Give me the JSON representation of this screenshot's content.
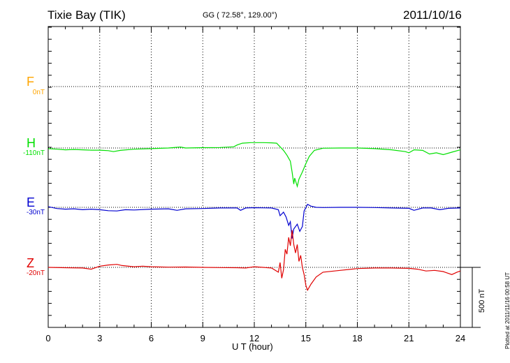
{
  "header": {
    "station": "Tixie Bay (TIK)",
    "coords": "GG ( 72.58°, 129.00°)",
    "date": "2011/10/16"
  },
  "side_note": "Plotted at 2011/11/16 00:58 UT",
  "chart_data": {
    "type": "line",
    "xlabel": "U T (hour)",
    "xlim": [
      0,
      24
    ],
    "xticks": [
      0,
      3,
      6,
      9,
      12,
      15,
      18,
      21,
      24
    ],
    "grid": true,
    "scale_bar": {
      "label": "500 nT",
      "value_nT": 500
    },
    "components": [
      {
        "name": "F",
        "baseline_label": "0nT",
        "color": "#FFA500",
        "points": []
      },
      {
        "name": "H",
        "baseline_label": "-110nT",
        "color": "#00E000",
        "points": [
          [
            0,
            -5
          ],
          [
            0.5,
            -10
          ],
          [
            1,
            -15
          ],
          [
            1.5,
            -12
          ],
          [
            2,
            -15
          ],
          [
            2.5,
            -18
          ],
          [
            3,
            -18
          ],
          [
            3.5,
            -22
          ],
          [
            3.8,
            -30
          ],
          [
            4.2,
            -20
          ],
          [
            5,
            -10
          ],
          [
            6,
            -5
          ],
          [
            7,
            0
          ],
          [
            7.7,
            8
          ],
          [
            8,
            0
          ],
          [
            9,
            3
          ],
          [
            10,
            4
          ],
          [
            10.8,
            10
          ],
          [
            11,
            25
          ],
          [
            11.3,
            40
          ],
          [
            11.8,
            45
          ],
          [
            12.5,
            45
          ],
          [
            13,
            43
          ],
          [
            13.3,
            40
          ],
          [
            13.5,
            10
          ],
          [
            13.7,
            -20
          ],
          [
            13.9,
            -60
          ],
          [
            14.1,
            -110
          ],
          [
            14.2,
            -200
          ],
          [
            14.3,
            -300
          ],
          [
            14.35,
            -250
          ],
          [
            14.5,
            -320
          ],
          [
            14.6,
            -260
          ],
          [
            14.8,
            -200
          ],
          [
            15,
            -130
          ],
          [
            15.2,
            -70
          ],
          [
            15.5,
            -20
          ],
          [
            16,
            -2
          ],
          [
            17,
            0
          ],
          [
            18,
            0
          ],
          [
            19,
            -5
          ],
          [
            20,
            -15
          ],
          [
            20.8,
            -30
          ],
          [
            21,
            -40
          ],
          [
            21.3,
            -15
          ],
          [
            21.8,
            -20
          ],
          [
            22.2,
            -50
          ],
          [
            22.6,
            -40
          ],
          [
            23,
            -55
          ],
          [
            23.5,
            -35
          ],
          [
            24,
            -15
          ]
        ]
      },
      {
        "name": "E",
        "baseline_label": "-30nT",
        "color": "#0000D0",
        "points": [
          [
            0,
            5
          ],
          [
            0.5,
            -10
          ],
          [
            1,
            -15
          ],
          [
            1.5,
            -12
          ],
          [
            2,
            -20
          ],
          [
            2.5,
            -15
          ],
          [
            3,
            -20
          ],
          [
            3.5,
            -28
          ],
          [
            4,
            -30
          ],
          [
            4.5,
            -20
          ],
          [
            5,
            -22
          ],
          [
            6,
            -15
          ],
          [
            7,
            -12
          ],
          [
            7.5,
            -25
          ],
          [
            8,
            -12
          ],
          [
            9,
            -10
          ],
          [
            10,
            -5
          ],
          [
            11,
            -5
          ],
          [
            11.2,
            -25
          ],
          [
            11.5,
            -5
          ],
          [
            12,
            -3
          ],
          [
            13,
            -5
          ],
          [
            13.4,
            -20
          ],
          [
            13.5,
            -70
          ],
          [
            13.7,
            -40
          ],
          [
            13.85,
            -80
          ],
          [
            14,
            -150
          ],
          [
            14.1,
            -120
          ],
          [
            14.2,
            -260
          ],
          [
            14.3,
            -180
          ],
          [
            14.5,
            -140
          ],
          [
            14.65,
            -200
          ],
          [
            14.8,
            -160
          ],
          [
            14.9,
            -30
          ],
          [
            15.1,
            25
          ],
          [
            15.3,
            10
          ],
          [
            15.6,
            0
          ],
          [
            16,
            -2
          ],
          [
            17,
            0
          ],
          [
            18,
            0
          ],
          [
            19,
            -2
          ],
          [
            20,
            -5
          ],
          [
            21,
            -8
          ],
          [
            21.3,
            -25
          ],
          [
            21.8,
            -5
          ],
          [
            22.3,
            -5
          ],
          [
            22.8,
            -20
          ],
          [
            23.3,
            -8
          ],
          [
            24,
            -5
          ]
        ]
      },
      {
        "name": "Z",
        "baseline_label": "-20nT",
        "color": "#E00000",
        "points": [
          [
            0,
            0
          ],
          [
            1,
            -3
          ],
          [
            2,
            -5
          ],
          [
            2.5,
            -15
          ],
          [
            3,
            10
          ],
          [
            3.5,
            20
          ],
          [
            4,
            25
          ],
          [
            4.3,
            15
          ],
          [
            5,
            5
          ],
          [
            5.5,
            10
          ],
          [
            6,
            5
          ],
          [
            7,
            2
          ],
          [
            8,
            3
          ],
          [
            9,
            0
          ],
          [
            10,
            -2
          ],
          [
            11,
            -3
          ],
          [
            11.5,
            -5
          ],
          [
            12,
            5
          ],
          [
            12.5,
            0
          ],
          [
            13,
            -5
          ],
          [
            13.4,
            -40
          ],
          [
            13.5,
            40
          ],
          [
            13.6,
            -90
          ],
          [
            13.7,
            -20
          ],
          [
            13.8,
            150
          ],
          [
            13.9,
            110
          ],
          [
            14,
            250
          ],
          [
            14.1,
            180
          ],
          [
            14.2,
            310
          ],
          [
            14.3,
            190
          ],
          [
            14.4,
            120
          ],
          [
            14.5,
            190
          ],
          [
            14.6,
            50
          ],
          [
            14.7,
            100
          ],
          [
            14.8,
            0
          ],
          [
            14.9,
            -60
          ],
          [
            15,
            -150
          ],
          [
            15.1,
            -190
          ],
          [
            15.3,
            -140
          ],
          [
            15.6,
            -80
          ],
          [
            16,
            -40
          ],
          [
            17,
            -25
          ],
          [
            18,
            -10
          ],
          [
            19,
            -5
          ],
          [
            20,
            -5
          ],
          [
            21,
            -8
          ],
          [
            21.5,
            -15
          ],
          [
            22,
            -30
          ],
          [
            22.5,
            -25
          ],
          [
            23,
            -35
          ],
          [
            23.5,
            -60
          ],
          [
            23.8,
            -40
          ],
          [
            24,
            -30
          ]
        ]
      }
    ]
  }
}
